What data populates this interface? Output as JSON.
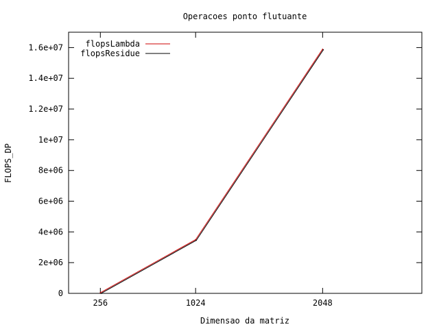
{
  "chart_data": {
    "type": "line",
    "title": "Operacoes ponto flutuante",
    "xlabel": "Dimensao da matriz",
    "ylabel": "FLOPS_DP",
    "x": [
      256,
      1024,
      2048
    ],
    "x_tick_labels": [
      "256",
      "1024",
      "2048"
    ],
    "xlim": [
      0,
      2848
    ],
    "ylim": [
      0,
      17000000
    ],
    "y_ticks": [
      0,
      2000000,
      4000000,
      6000000,
      8000000,
      10000000,
      12000000,
      14000000,
      16000000
    ],
    "y_tick_labels": [
      "0",
      "2e+06",
      "4e+06",
      "6e+06",
      "8e+06",
      "1e+07",
      "1.2e+07",
      "1.4e+07",
      "1.6e+07"
    ],
    "series": [
      {
        "name": "flopsLambda",
        "color": "#cc0000",
        "values": [
          40000,
          3500000,
          15900000
        ]
      },
      {
        "name": "flopsResidue",
        "color": "#000000",
        "values": [
          40000,
          3500000,
          15900000
        ]
      }
    ],
    "legend_position": "top-left",
    "grid": false
  }
}
